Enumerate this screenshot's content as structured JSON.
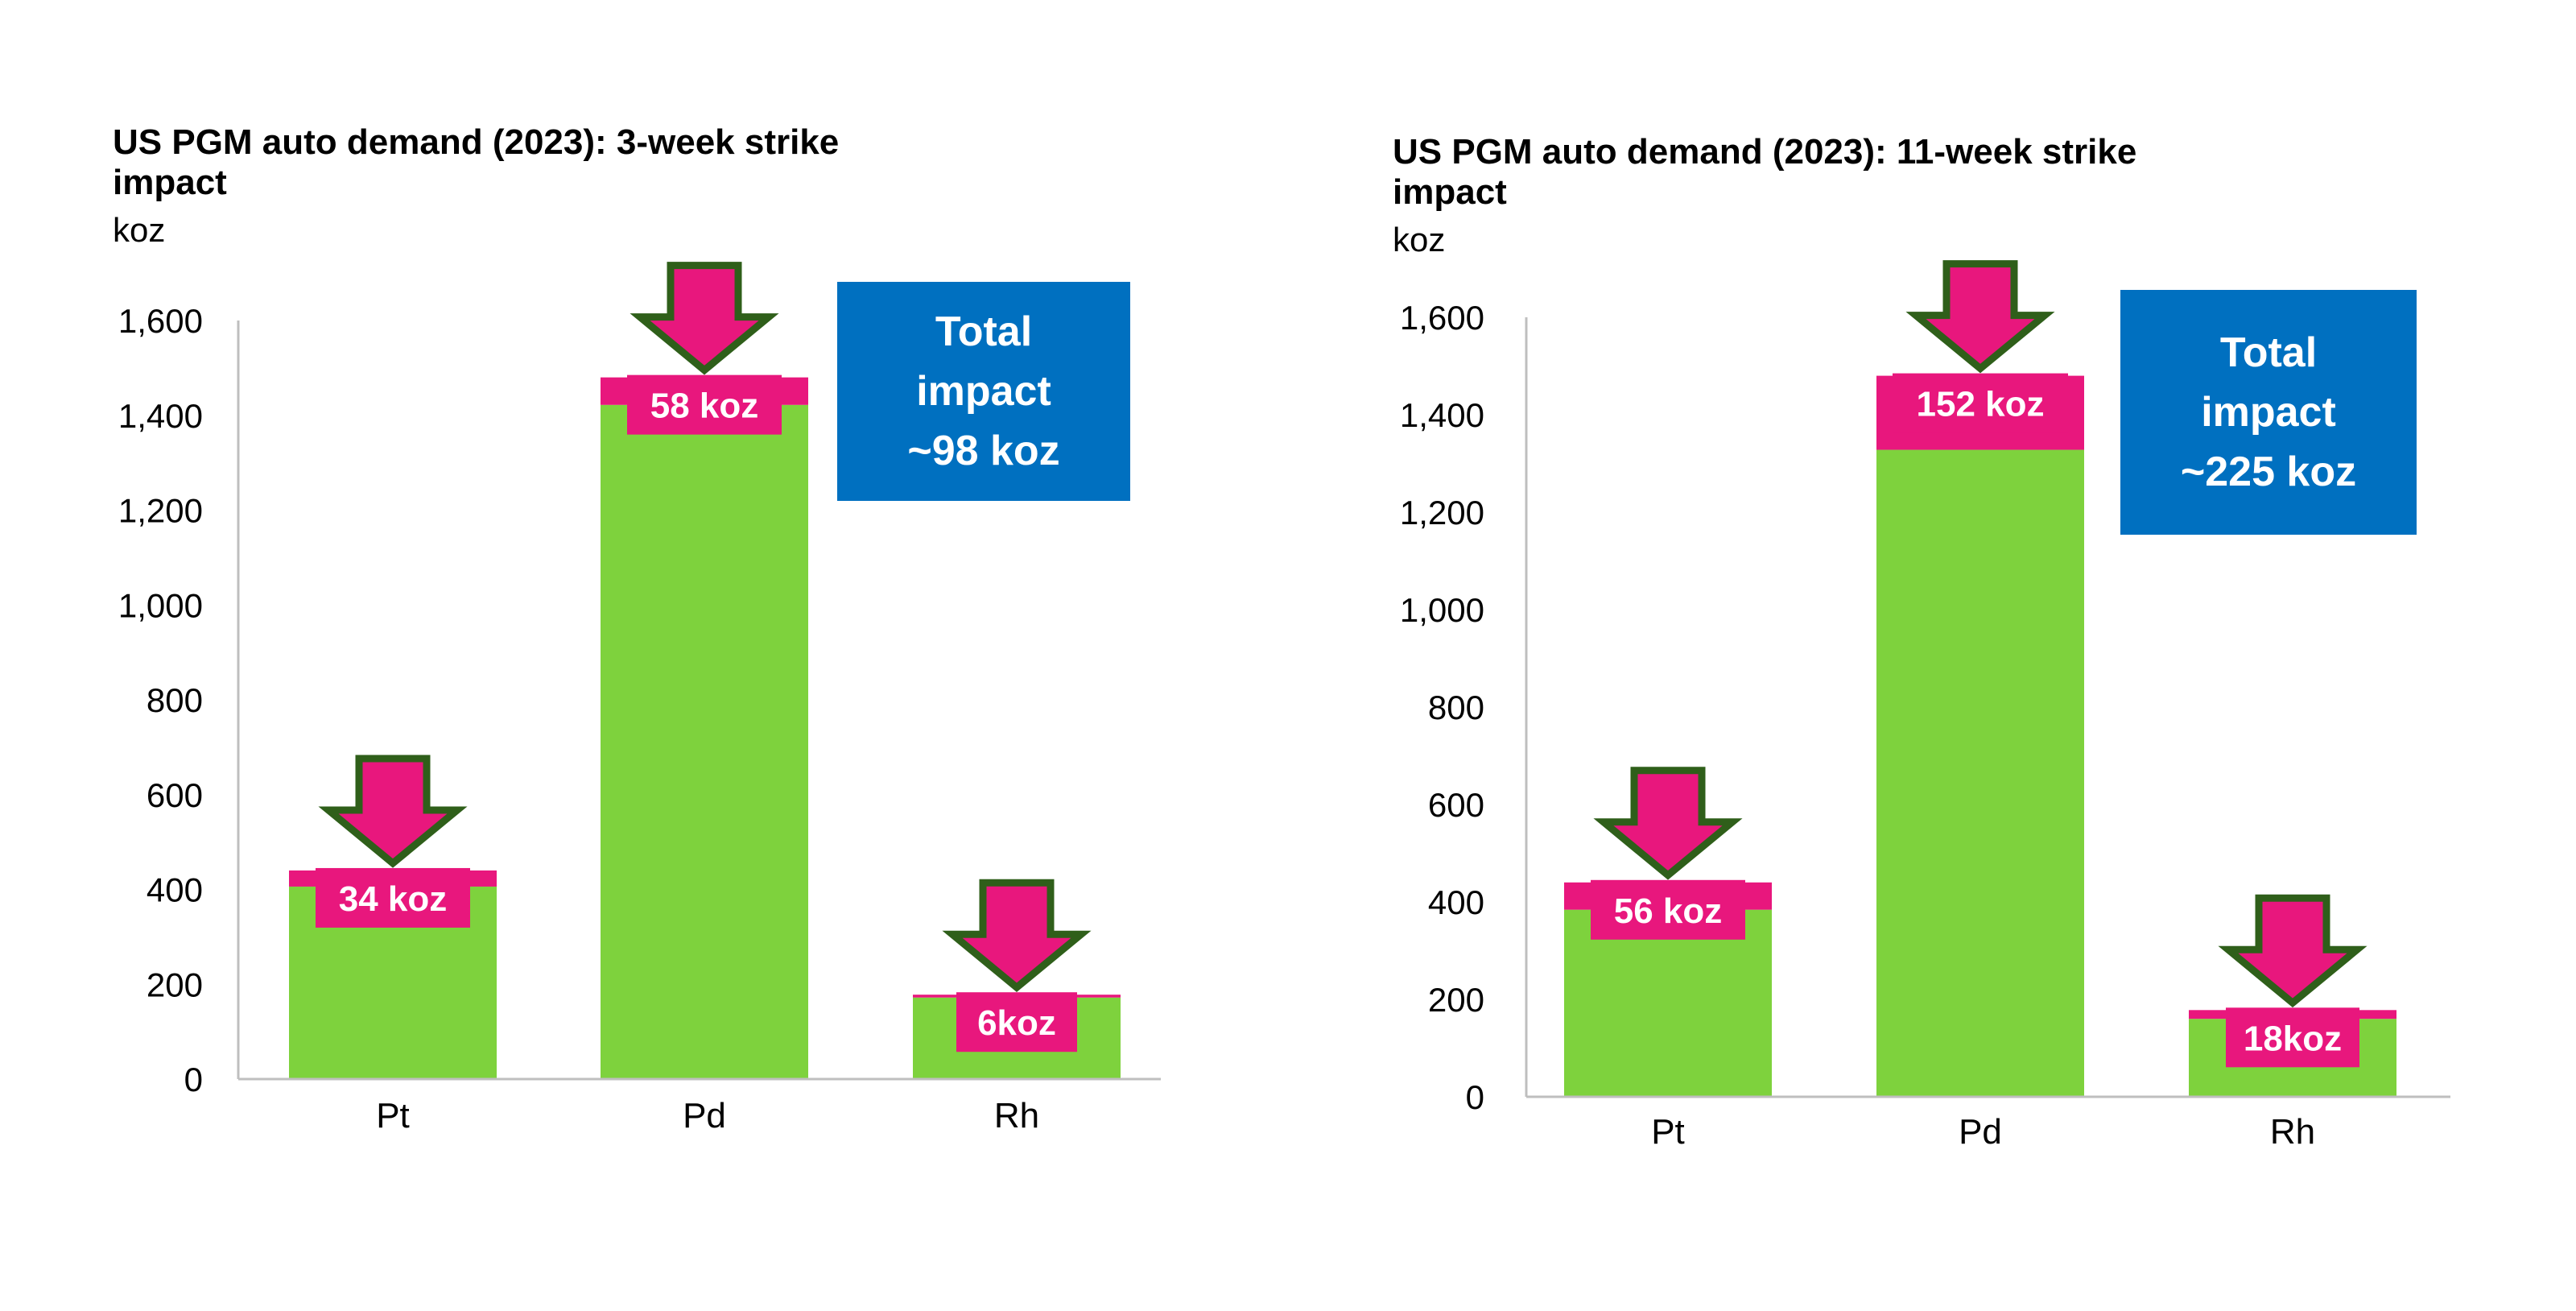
{
  "colors": {
    "base": "#7ed23d",
    "impact": "#e8177d",
    "arrow_fill": "#e8177d",
    "arrow_stroke": "#2f5f1a",
    "total_box": "#0070c0",
    "axis": "#bfbfbf"
  },
  "chart_data": [
    {
      "type": "bar",
      "stacked": true,
      "title": "US PGM auto demand (2023): 3-week strike impact",
      "ylabel": "koz",
      "ylim": [
        0,
        1600
      ],
      "yticks": [
        "0",
        "200",
        "400",
        "600",
        "800",
        "1,000",
        "1,200",
        "1,400",
        "1,600"
      ],
      "categories": [
        "Pt",
        "Pd",
        "Rh"
      ],
      "series": [
        {
          "values": [
            406,
            1422,
            172
          ]
        },
        {
          "values": [
            34,
            58,
            6
          ]
        }
      ],
      "impact_labels": [
        "34 koz",
        "58 koz",
        "6koz"
      ],
      "total_text": [
        "Total",
        "impact",
        "~98 koz"
      ]
    },
    {
      "type": "bar",
      "stacked": true,
      "title": "US PGM auto demand (2023): 11-week strike impact",
      "ylabel": "koz",
      "ylim": [
        0,
        1600
      ],
      "yticks": [
        "0",
        "200",
        "400",
        "600",
        "800",
        "1,000",
        "1,200",
        "1,400",
        "1,600"
      ],
      "categories": [
        "Pt",
        "Pd",
        "Rh"
      ],
      "series": [
        {
          "values": [
            384,
            1328,
            160
          ]
        },
        {
          "values": [
            56,
            152,
            18
          ]
        }
      ],
      "impact_labels": [
        "56 koz",
        "152 koz",
        "18koz"
      ],
      "total_text": [
        "Total",
        "impact",
        "~225 koz"
      ]
    }
  ]
}
